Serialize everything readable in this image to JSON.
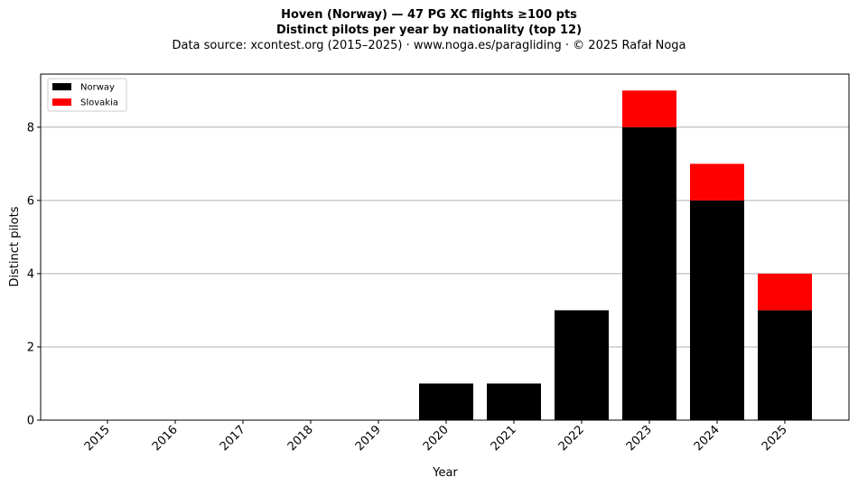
{
  "title_line1": "Hoven (Norway)  —  47 PG XC flights ≥100 pts",
  "title_line2": "Distinct pilots per year by nationality (top 12)",
  "subtitle": "Data source: xcontest.org (2015–2025)  ·  www.noga.es/paragliding  ·  © 2025 Rafał Noga",
  "chart_data": {
    "type": "bar",
    "stacked": true,
    "title": "Hoven (Norway)  —  47 PG XC flights ≥100 pts",
    "subtitle": "Distinct pilots per year by nationality (top 12)",
    "xlabel": "Year",
    "ylabel": "Distinct pilots",
    "categories": [
      "2015",
      "2016",
      "2017",
      "2018",
      "2019",
      "2020",
      "2021",
      "2022",
      "2023",
      "2024",
      "2025"
    ],
    "series": [
      {
        "name": "Norway",
        "color": "#000000",
        "values": [
          0,
          0,
          0,
          0,
          0,
          1,
          1,
          3,
          8,
          6,
          3
        ]
      },
      {
        "name": "Slovakia",
        "color": "#ff0000",
        "values": [
          0,
          0,
          0,
          0,
          0,
          0,
          0,
          0,
          1,
          1,
          1
        ]
      }
    ],
    "ylim": [
      0,
      9.45
    ],
    "yticks": [
      0,
      2,
      4,
      6,
      8
    ],
    "grid": "y",
    "legend": "top-left"
  }
}
